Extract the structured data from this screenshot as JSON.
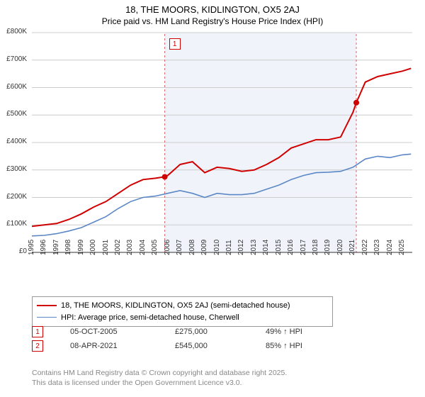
{
  "title": {
    "line1": "18, THE MOORS, KIDLINGTON, OX5 2AJ",
    "line2": "Price paid vs. HM Land Registry's House Price Index (HPI)",
    "fontsize_main": 13,
    "fontsize_sub": 12,
    "color": "#000000"
  },
  "chart": {
    "type": "line",
    "background_color": "#ffffff",
    "highlight_band": {
      "x_start": 2005.76,
      "x_end": 2021.27,
      "fill": "#eaf0f8",
      "opacity": 0.7
    },
    "x_axis": {
      "lim": [
        1995,
        2025.8
      ],
      "ticks": [
        1995,
        1996,
        1997,
        1998,
        1999,
        2000,
        2001,
        2002,
        2003,
        2004,
        2005,
        2006,
        2007,
        2008,
        2009,
        2010,
        2011,
        2012,
        2013,
        2014,
        2015,
        2016,
        2017,
        2018,
        2019,
        2020,
        2021,
        2022,
        2023,
        2024,
        2025
      ],
      "label_fontsize": 10,
      "label_color": "#333333",
      "rotation": -90
    },
    "y_axis": {
      "lim": [
        0,
        800000
      ],
      "ticks": [
        0,
        100000,
        200000,
        300000,
        400000,
        500000,
        600000,
        700000,
        800000
      ],
      "tick_labels": [
        "£0",
        "£100K",
        "£200K",
        "£300K",
        "£400K",
        "£500K",
        "£600K",
        "£700K",
        "£800K"
      ],
      "label_fontsize": 10,
      "label_color": "#333333",
      "gridline_color": "#cccccc",
      "gridline_width": 1
    },
    "series": [
      {
        "name": "price_paid",
        "label": "18, THE MOORS, KIDLINGTON, OX5 2AJ (semi-detached house)",
        "color": "#d00000",
        "line_width": 2,
        "x": [
          1995,
          1996,
          1997,
          1998,
          1999,
          2000,
          2001,
          2002,
          2003,
          2004,
          2005,
          2005.76,
          2006,
          2007,
          2008,
          2009,
          2010,
          2011,
          2012,
          2013,
          2014,
          2015,
          2016,
          2017,
          2018,
          2019,
          2020,
          2021,
          2021.27,
          2022,
          2023,
          2024,
          2025,
          2025.7
        ],
        "y": [
          95000,
          100000,
          105000,
          120000,
          140000,
          165000,
          185000,
          215000,
          245000,
          265000,
          270000,
          275000,
          280000,
          320000,
          330000,
          290000,
          310000,
          305000,
          295000,
          300000,
          320000,
          345000,
          380000,
          395000,
          410000,
          410000,
          420000,
          510000,
          545000,
          620000,
          640000,
          650000,
          660000,
          670000
        ]
      },
      {
        "name": "hpi",
        "label": "HPI: Average price, semi-detached house, Cherwell",
        "color": "#5b87c7",
        "line_width": 1.6,
        "x": [
          1995,
          1996,
          1997,
          1998,
          1999,
          2000,
          2001,
          2002,
          2003,
          2004,
          2005,
          2006,
          2007,
          2008,
          2009,
          2010,
          2011,
          2012,
          2013,
          2014,
          2015,
          2016,
          2017,
          2018,
          2019,
          2020,
          2021,
          2022,
          2023,
          2024,
          2025,
          2025.7
        ],
        "y": [
          60000,
          62000,
          68000,
          78000,
          90000,
          110000,
          130000,
          160000,
          185000,
          200000,
          205000,
          215000,
          225000,
          215000,
          200000,
          215000,
          210000,
          210000,
          215000,
          230000,
          245000,
          265000,
          280000,
          290000,
          292000,
          295000,
          310000,
          340000,
          350000,
          345000,
          355000,
          358000
        ]
      }
    ],
    "markers": [
      {
        "ref": "1",
        "x": 2005.76,
        "y": 275000,
        "color": "#d00000",
        "label_box_y_offset": -195,
        "label_box_x_offset": 6
      },
      {
        "ref": "2",
        "x": 2021.27,
        "y": 545000,
        "color": "#d00000",
        "label_box_y_offset": -305,
        "label_box_x_offset": 6
      }
    ]
  },
  "legend": {
    "border_color": "#999999",
    "fontsize": 11
  },
  "refs": [
    {
      "num": "1",
      "date": "05-OCT-2005",
      "price": "£275,000",
      "pct": "49% ↑ HPI"
    },
    {
      "num": "2",
      "date": "08-APR-2021",
      "price": "£545,000",
      "pct": "85% ↑ HPI"
    }
  ],
  "footer": {
    "line1": "Contains HM Land Registry data © Crown copyright and database right 2025.",
    "line2": "This data is licensed under the Open Government Licence v3.0.",
    "color": "#888888",
    "fontsize": 10.5
  }
}
